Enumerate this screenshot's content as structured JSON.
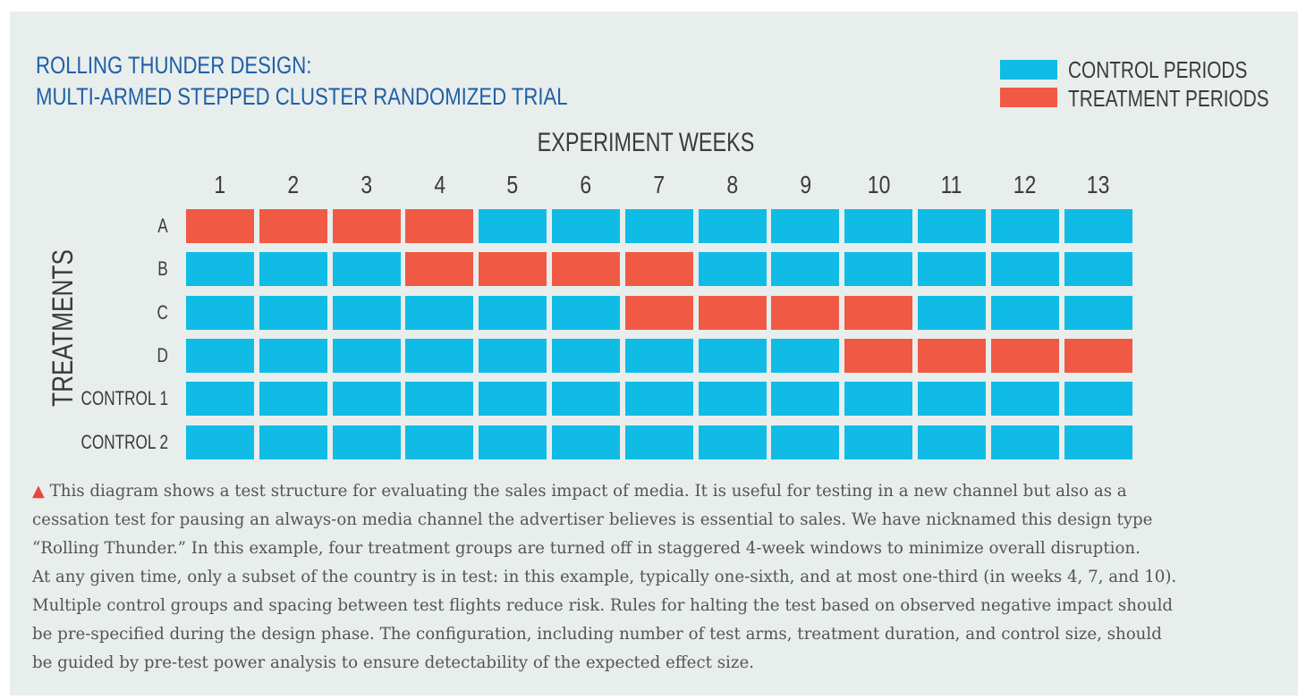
{
  "title": {
    "line1": "ROLLING THUNDER DESIGN:",
    "line2": "MULTI-ARMED STEPPED CLUSTER RANDOMIZED TRIAL"
  },
  "legend": {
    "control": {
      "label": "CONTROL PERIODS",
      "color": "#10bce6"
    },
    "treatment": {
      "label": "TREATMENT PERIODS",
      "color": "#f05a45"
    }
  },
  "axis": {
    "x_title": "EXPERIMENT WEEKS",
    "y_title": "TREATMENTS"
  },
  "weeks": [
    "1",
    "2",
    "3",
    "4",
    "5",
    "6",
    "7",
    "8",
    "9",
    "10",
    "11",
    "12",
    "13"
  ],
  "groups": [
    {
      "label": "A",
      "treatment_weeks": [
        1,
        2,
        3,
        4
      ]
    },
    {
      "label": "B",
      "treatment_weeks": [
        4,
        5,
        6,
        7
      ]
    },
    {
      "label": "C",
      "treatment_weeks": [
        7,
        8,
        9,
        10
      ]
    },
    {
      "label": "D",
      "treatment_weeks": [
        10,
        11,
        12,
        13
      ]
    },
    {
      "label": "CONTROL 1",
      "treatment_weeks": []
    },
    {
      "label": "CONTROL 2",
      "treatment_weeks": []
    }
  ],
  "caption": {
    "marker": "▲",
    "lines": [
      "This diagram shows a test structure for evaluating the sales impact of media. It is useful for testing in a new channel but also as a",
      "cessation test for pausing an always-on media channel the advertiser believes is essential to sales. We have nicknamed this design type",
      "“Rolling Thunder.” In this example, four treatment groups are turned off in staggered 4-week windows to minimize overall disruption.",
      "At any given time, only a subset of the country is in test: in this example, typically one-sixth, and at most one-third (in weeks 4, 7, and 10).",
      "Multiple control groups and spacing between test flights reduce risk. Rules for halting the test based on observed negative impact should",
      "be pre-specified during the design phase. The configuration, including number of test arms, treatment duration, and control size, should",
      "be guided by pre-test power analysis to ensure detectability of the expected effect size."
    ]
  }
}
